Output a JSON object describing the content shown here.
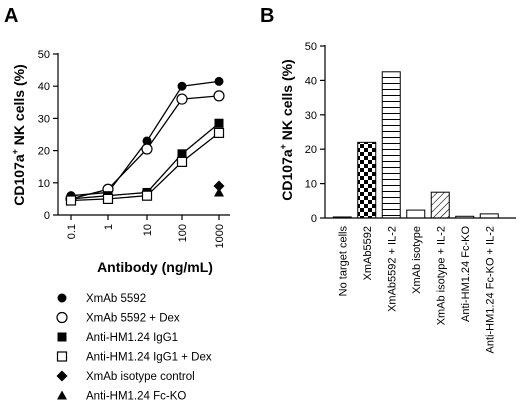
{
  "chart_data": [
    {
      "panel": "A",
      "type": "line",
      "xscale": "log",
      "x_tick_labels": [
        "0.1",
        "1",
        "10",
        "100",
        "1000"
      ],
      "x": [
        0.1,
        1,
        10,
        100,
        1000
      ],
      "ylim": [
        0,
        50
      ],
      "y_ticks": [
        "0",
        "10",
        "20",
        "30",
        "40",
        "50"
      ],
      "xlabel": "Antibody (ng/mL)",
      "ylabel_main": "CD107a",
      "ylabel_sup": "+",
      "ylabel_rest": " NK cells (%)",
      "series": [
        {
          "name": "XmAb 5592",
          "marker": "filled-circle",
          "values": [
            6,
            7,
            23,
            40,
            41.5
          ]
        },
        {
          "name": "XmAb 5592 + Dex",
          "marker": "open-circle",
          "values": [
            5,
            8,
            20.5,
            36,
            37
          ]
        },
        {
          "name": "Anti-HM1.24 IgG1",
          "marker": "filled-square",
          "values": [
            5,
            6,
            7,
            19,
            28.5
          ]
        },
        {
          "name": "Anti-HM1.24 IgG1 + Dex",
          "marker": "open-square",
          "values": [
            4.5,
            5,
            6,
            16.5,
            25.5
          ]
        },
        {
          "name": "XmAb isotype control",
          "marker": "filled-diamond",
          "values": [
            null,
            null,
            null,
            null,
            9
          ]
        },
        {
          "name": "Anti-HM1.24 Fc-KO",
          "marker": "filled-triangle",
          "values": [
            null,
            null,
            null,
            null,
            7
          ]
        }
      ]
    },
    {
      "panel": "B",
      "type": "bar",
      "ylim": [
        0,
        50
      ],
      "y_ticks": [
        "0",
        "10",
        "20",
        "30",
        "40",
        "50"
      ],
      "ylabel_main": "CD107a",
      "ylabel_sup": "+",
      "ylabel_rest": " NK cells (%)",
      "categories": [
        "No target cells",
        "XmAb5592",
        "XmAb5592 + IL-2",
        "XmAb isotype",
        "XmAb isotype + IL-2",
        "Anti-HM1.24 Fc-KO",
        "Anti-HM1.24 Fc-KO + IL-2"
      ],
      "values": [
        0.3,
        22,
        42.5,
        2.3,
        7.5,
        0.5,
        1.2
      ],
      "patterns": [
        "none",
        "checker",
        "horizontal-stripes",
        "none",
        "diagonal-stripes",
        "none",
        "none"
      ]
    }
  ],
  "panel_labels": {
    "a": "A",
    "b": "B"
  }
}
